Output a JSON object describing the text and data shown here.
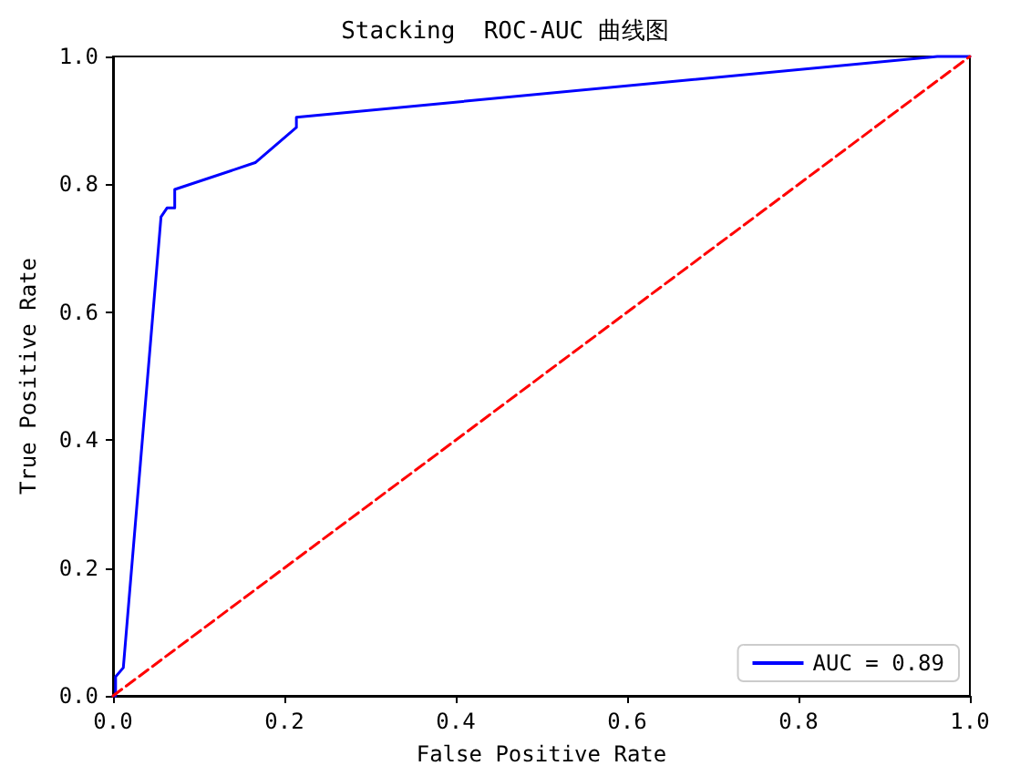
{
  "chart_data": {
    "type": "line",
    "title": "Stacking  ROC-AUC 曲线图",
    "xlabel": "False Positive Rate",
    "ylabel": "True Positive Rate",
    "xlim": [
      0,
      1
    ],
    "ylim": [
      0,
      1
    ],
    "xticks": [
      {
        "value": 0,
        "label": "0.0"
      },
      {
        "value": 0.2,
        "label": "0.2"
      },
      {
        "value": 0.4,
        "label": "0.4"
      },
      {
        "value": 0.6,
        "label": "0.6"
      },
      {
        "value": 0.8,
        "label": "0.8"
      },
      {
        "value": 1,
        "label": "1.0"
      }
    ],
    "yticks": [
      {
        "value": 0,
        "label": "0.0"
      },
      {
        "value": 0.2,
        "label": "0.2"
      },
      {
        "value": 0.4,
        "label": "0.4"
      },
      {
        "value": 0.6,
        "label": "0.6"
      },
      {
        "value": 0.8,
        "label": "0.8"
      },
      {
        "value": 1,
        "label": "1.0"
      }
    ],
    "grid": false,
    "legend": "bottom right",
    "marker": "none",
    "series": [
      {
        "name": "AUC = 0.89",
        "color": "#0000ff",
        "line_style": "solid",
        "x": [
          0,
          0.003,
          0.003,
          0.012,
          0.056,
          0.063,
          0.072,
          0.072,
          0.166,
          0.214,
          0.214,
          0.962,
          1
        ],
        "values": [
          0,
          0,
          0.03,
          0.044,
          0.749,
          0.763,
          0.763,
          0.792,
          0.834,
          0.889,
          0.905,
          1,
          1
        ]
      },
      {
        "color": "#ff0000",
        "line_style": "dashed",
        "x": [
          0,
          1
        ],
        "values": [
          0,
          1
        ]
      }
    ]
  }
}
